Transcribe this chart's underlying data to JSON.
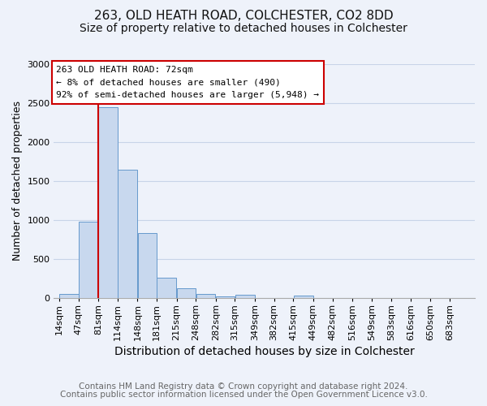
{
  "title": "263, OLD HEATH ROAD, COLCHESTER, CO2 8DD",
  "subtitle": "Size of property relative to detached houses in Colchester",
  "xlabel": "Distribution of detached houses by size in Colchester",
  "ylabel": "Number of detached properties",
  "bar_color": "#c8d8ee",
  "bar_edge_color": "#6699cc",
  "grid_color": "#c8d4e8",
  "background_color": "#eef2fa",
  "marker_line_color": "#cc0000",
  "annotation_text": "263 OLD HEATH ROAD: 72sqm\n← 8% of detached houses are smaller (490)\n92% of semi-detached houses are larger (5,948) →",
  "annotation_box_facecolor": "#ffffff",
  "annotation_border_color": "#cc0000",
  "categories": [
    "14sqm",
    "47sqm",
    "81sqm",
    "114sqm",
    "148sqm",
    "181sqm",
    "215sqm",
    "248sqm",
    "282sqm",
    "315sqm",
    "349sqm",
    "382sqm",
    "415sqm",
    "449sqm",
    "482sqm",
    "516sqm",
    "549sqm",
    "583sqm",
    "616sqm",
    "650sqm",
    "683sqm"
  ],
  "bin_edges": [
    14,
    47,
    81,
    114,
    148,
    181,
    215,
    248,
    282,
    315,
    349,
    382,
    415,
    449,
    482,
    516,
    549,
    583,
    616,
    650,
    683,
    716
  ],
  "bar_heights": [
    55,
    980,
    2450,
    1650,
    830,
    265,
    130,
    55,
    25,
    45,
    0,
    0,
    30,
    0,
    0,
    0,
    0,
    0,
    0,
    0,
    0
  ],
  "marker_bin_edge": 81,
  "ylim": [
    0,
    3000
  ],
  "yticks": [
    0,
    500,
    1000,
    1500,
    2000,
    2500,
    3000
  ],
  "footer_line1": "Contains HM Land Registry data © Crown copyright and database right 2024.",
  "footer_line2": "Contains public sector information licensed under the Open Government Licence v3.0.",
  "title_fontsize": 11,
  "subtitle_fontsize": 10,
  "xlabel_fontsize": 10,
  "ylabel_fontsize": 9,
  "tick_fontsize": 8,
  "annot_fontsize": 8,
  "footer_fontsize": 7.5
}
